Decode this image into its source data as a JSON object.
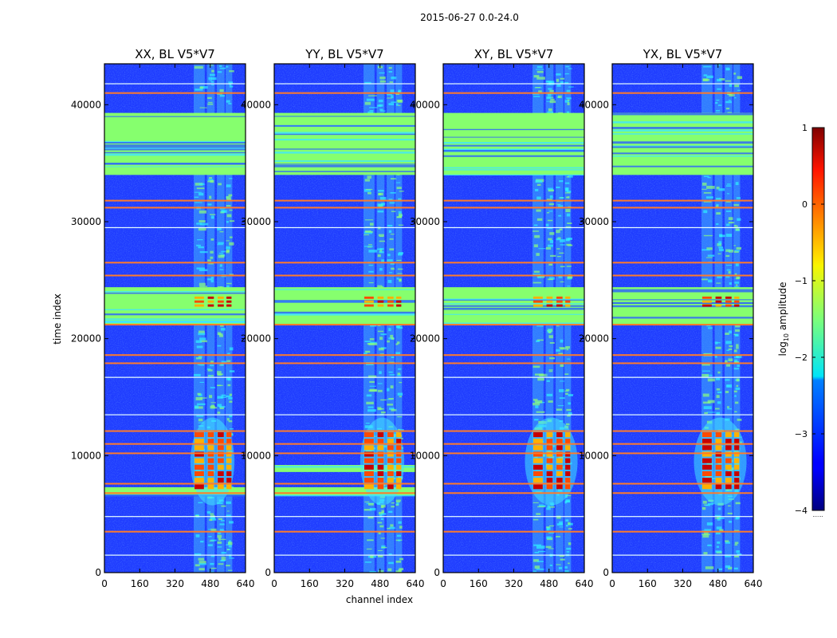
{
  "figure": {
    "suptitle": "2015-06-27 0.0-24.0"
  },
  "chart_data": {
    "type": "heatmap",
    "xlabel": "channel index",
    "ylabel": "time index",
    "xlim": [
      0,
      640
    ],
    "ylim": [
      0,
      43500
    ],
    "x_ticks": [
      0,
      160,
      320,
      480,
      640
    ],
    "y_ticks": [
      0,
      10000,
      20000,
      30000,
      40000
    ],
    "panels": [
      {
        "title": "XX, BL V5*V7",
        "pattern": "parallel",
        "row_bands": [
          [
            34000,
            39300
          ],
          [
            21200,
            24400
          ],
          [
            6600,
            7300
          ]
        ]
      },
      {
        "title": "YY, BL V5*V7",
        "pattern": "parallel",
        "row_bands": [
          [
            34000,
            39300
          ],
          [
            21200,
            24400
          ],
          [
            8600,
            9200
          ],
          [
            6600,
            7300
          ]
        ]
      },
      {
        "title": "XY, BL V5*V7",
        "pattern": "cross",
        "row_bands": [
          [
            34000,
            39300
          ],
          [
            21200,
            24400
          ]
        ]
      },
      {
        "title": "YX, BL V5*V7",
        "pattern": "cross",
        "row_bands": [
          [
            34000,
            39300
          ],
          [
            21200,
            24400
          ]
        ]
      }
    ],
    "rfi_channel_bands": [
      [
        405,
        455
      ],
      [
        465,
        500
      ],
      [
        510,
        545
      ],
      [
        550,
        580
      ]
    ],
    "burst_regions": [
      {
        "time_range": [
          22600,
          23600
        ],
        "amplitude_log10": 0.5
      },
      {
        "time_range": [
          7000,
          12000
        ],
        "amplitude_log10": 0.6
      }
    ],
    "orange_time_lines": [
      41000,
      31800,
      31200,
      26500,
      25400,
      21200,
      18600,
      17900,
      12100,
      11000,
      10200,
      7600,
      6800,
      3500
    ],
    "white_time_lines": [
      41800,
      29500,
      16700,
      13500,
      4800,
      1500
    ],
    "colorbar": {
      "label": "log",
      "label_sub": "10",
      "label_suffix": " amplitude",
      "min": -4,
      "max": 1,
      "ticks": [
        -4,
        -3,
        -2,
        -1,
        0,
        1
      ],
      "tick_labels": [
        "−4",
        "−3",
        "−2",
        "−1",
        "0",
        "1"
      ]
    }
  }
}
